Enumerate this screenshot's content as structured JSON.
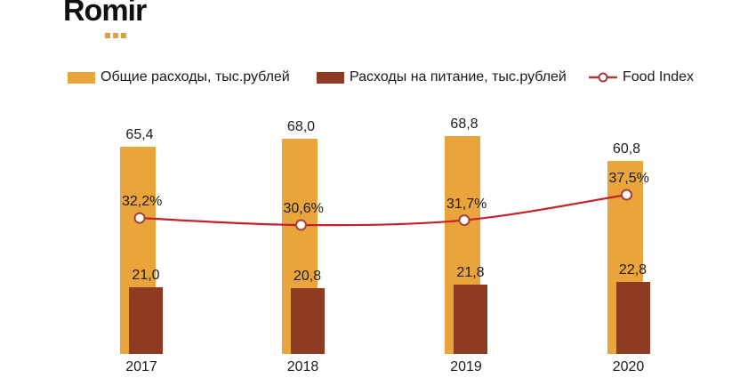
{
  "logo": {
    "text": "Romir",
    "dots_color": "#DD9E3F"
  },
  "legend": [
    {
      "label": "Общие расходы, тыс.рублей",
      "color": "#E9A43C"
    },
    {
      "label": "Расходы на питание, тыс.рублей",
      "color": "#8E3B22"
    },
    {
      "label": "Food Index",
      "color": "#A33B3B"
    }
  ],
  "chart_data": {
    "type": "bar",
    "title": "",
    "categories": [
      "2017",
      "2018",
      "2019",
      "2020"
    ],
    "series": [
      {
        "name": "Общие расходы, тыс.рублей",
        "type": "bar",
        "color": "#E9A43C",
        "values": [
          65.4,
          68.0,
          68.8,
          60.8
        ],
        "value_labels": [
          "65,4",
          "68,0",
          "68,8",
          "60,8"
        ]
      },
      {
        "name": "Расходы на питание, тыс.рублей",
        "type": "bar",
        "color": "#8E3B22",
        "values": [
          21.0,
          20.8,
          21.8,
          22.8
        ],
        "value_labels": [
          "21,0",
          "20,8",
          "21,8",
          "22,8"
        ]
      },
      {
        "name": "Food Index",
        "type": "line",
        "color": "#C4202A",
        "marker": "open-circle",
        "marker_stroke": "#A74038",
        "values": [
          32.2,
          30.6,
          31.7,
          37.5
        ],
        "value_labels": [
          "32,2%",
          "30,6%",
          "31,7%",
          "37,5%"
        ]
      }
    ],
    "xlabel": "",
    "ylabel": "",
    "bar_axis_min": 0,
    "grid": false,
    "legend_position": "top"
  }
}
